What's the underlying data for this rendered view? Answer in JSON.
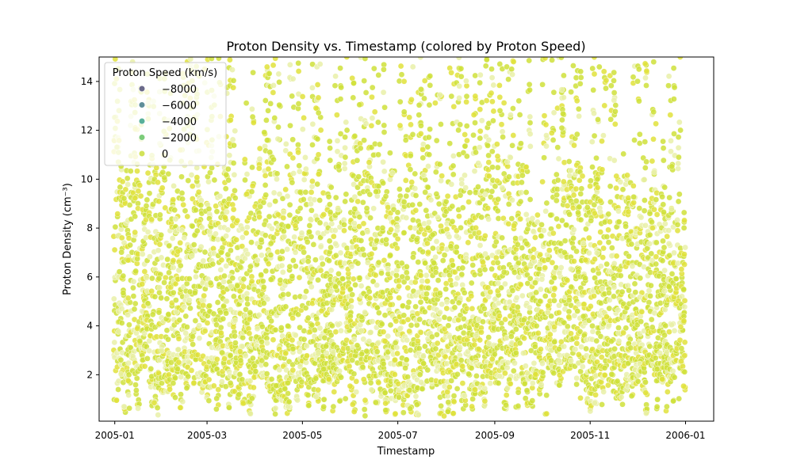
{
  "chart_data": {
    "type": "scatter",
    "title": "Proton Density vs. Timestamp (colored by Proton Speed)",
    "xlabel": "Timestamp",
    "ylabel": "Proton Density (cm⁻³)",
    "x_range": [
      "2004-12-22",
      "2006-01-19"
    ],
    "ylim": [
      0.1,
      15.0
    ],
    "x_ticks": [
      "2005-01",
      "2005-03",
      "2005-05",
      "2005-07",
      "2005-09",
      "2005-11",
      "2006-01"
    ],
    "y_ticks": [
      2,
      4,
      6,
      8,
      10,
      12,
      14
    ],
    "grid": false,
    "legend": {
      "title": "Proton Speed (km/s)",
      "placement": "top-left",
      "entries": [
        {
          "label": "−8000",
          "value": -8000,
          "color": "#6b6a8a"
        },
        {
          "label": "−6000",
          "value": -6000,
          "color": "#5f8e99"
        },
        {
          "label": "−4000",
          "value": -4000,
          "color": "#58b09a"
        },
        {
          "label": "−2000",
          "value": -2000,
          "color": "#7ccc7a"
        },
        {
          "label": "0",
          "value": 0,
          "color": "#d2e35a"
        }
      ]
    },
    "colors": {
      "points": "#cfe03a",
      "points_alt": "#e1e23b",
      "points_light": "#e9f0a8"
    },
    "series": [
      {
        "x_start": "2005-01-01",
        "x_end": "2005-12-31",
        "y_range": [
          0.3,
          15.0
        ],
        "y_typical": [
          2.0,
          8.0
        ],
        "color_value": 0
      }
    ]
  }
}
